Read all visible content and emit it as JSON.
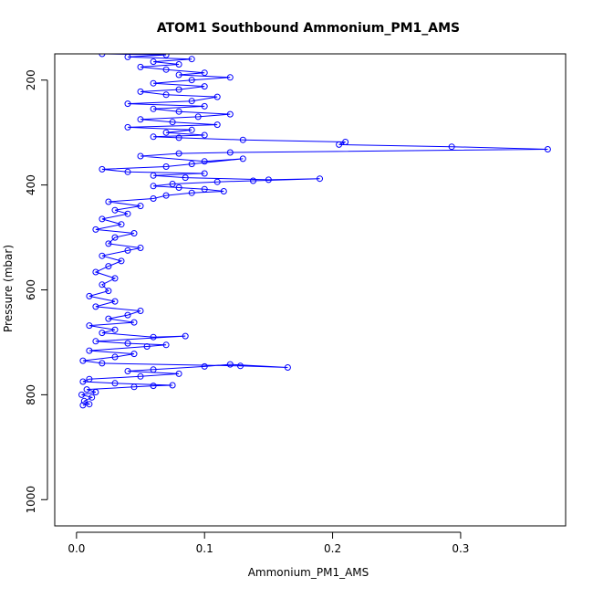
{
  "chart_data": {
    "type": "scatter",
    "title": "ATOM1 Southbound Ammonium_PM1_AMS",
    "xlabel": "Ammonium_PM1_AMS",
    "ylabel": "Pressure (mbar)",
    "xlim": [
      -0.017,
      0.382
    ],
    "ylim": [
      1050,
      150
    ],
    "y_reversed": true,
    "x_ticks": [
      {
        "value": 0.0,
        "label": "0.0"
      },
      {
        "value": 0.1,
        "label": "0.1"
      },
      {
        "value": 0.2,
        "label": "0.2"
      },
      {
        "value": 0.3,
        "label": "0.3"
      }
    ],
    "y_ticks": [
      {
        "value": 200,
        "label": "200"
      },
      {
        "value": 400,
        "label": "400"
      },
      {
        "value": 600,
        "label": "600"
      },
      {
        "value": 800,
        "label": "800"
      },
      {
        "value": 1000,
        "label": "1000"
      }
    ],
    "grid": false,
    "series": [
      {
        "color": "#0000ff",
        "marker": "open-circle",
        "connected": true,
        "points": [
          [
            0.005,
            820
          ],
          [
            0.01,
            818
          ],
          [
            0.006,
            812
          ],
          [
            0.012,
            805
          ],
          [
            0.004,
            800
          ],
          [
            0.015,
            795
          ],
          [
            0.008,
            790
          ],
          [
            0.045,
            785
          ],
          [
            0.06,
            783
          ],
          [
            0.075,
            782
          ],
          [
            0.03,
            778
          ],
          [
            0.005,
            775
          ],
          [
            0.01,
            770
          ],
          [
            0.05,
            765
          ],
          [
            0.08,
            760
          ],
          [
            0.04,
            755
          ],
          [
            0.06,
            752
          ],
          [
            0.1,
            746
          ],
          [
            0.12,
            742
          ],
          [
            0.165,
            748
          ],
          [
            0.128,
            745
          ],
          [
            0.02,
            740
          ],
          [
            0.005,
            735
          ],
          [
            0.03,
            728
          ],
          [
            0.045,
            722
          ],
          [
            0.01,
            716
          ],
          [
            0.055,
            708
          ],
          [
            0.07,
            705
          ],
          [
            0.04,
            702
          ],
          [
            0.015,
            698
          ],
          [
            0.085,
            688
          ],
          [
            0.06,
            690
          ],
          [
            0.02,
            682
          ],
          [
            0.03,
            676
          ],
          [
            0.01,
            668
          ],
          [
            0.045,
            662
          ],
          [
            0.025,
            655
          ],
          [
            0.04,
            648
          ],
          [
            0.05,
            640
          ],
          [
            0.015,
            632
          ],
          [
            0.03,
            622
          ],
          [
            0.01,
            612
          ],
          [
            0.025,
            602
          ],
          [
            0.02,
            590
          ],
          [
            0.03,
            578
          ],
          [
            0.015,
            566
          ],
          [
            0.025,
            555
          ],
          [
            0.035,
            545
          ],
          [
            0.02,
            535
          ],
          [
            0.04,
            525
          ],
          [
            0.05,
            520
          ],
          [
            0.025,
            512
          ],
          [
            0.03,
            500
          ],
          [
            0.045,
            492
          ],
          [
            0.015,
            485
          ],
          [
            0.035,
            475
          ],
          [
            0.02,
            465
          ],
          [
            0.04,
            455
          ],
          [
            0.03,
            448
          ],
          [
            0.05,
            440
          ],
          [
            0.025,
            432
          ],
          [
            0.06,
            426
          ],
          [
            0.07,
            420
          ],
          [
            0.09,
            415
          ],
          [
            0.115,
            412
          ],
          [
            0.1,
            408
          ],
          [
            0.08,
            405
          ],
          [
            0.06,
            402
          ],
          [
            0.075,
            398
          ],
          [
            0.11,
            394
          ],
          [
            0.138,
            392
          ],
          [
            0.19,
            388
          ],
          [
            0.15,
            390
          ],
          [
            0.085,
            386
          ],
          [
            0.06,
            382
          ],
          [
            0.1,
            378
          ],
          [
            0.04,
            375
          ],
          [
            0.02,
            370
          ],
          [
            0.07,
            365
          ],
          [
            0.09,
            360
          ],
          [
            0.13,
            350
          ],
          [
            0.1,
            355
          ],
          [
            0.05,
            345
          ],
          [
            0.08,
            340
          ],
          [
            0.12,
            338
          ],
          [
            0.368,
            332
          ],
          [
            0.293,
            327
          ],
          [
            0.205,
            323
          ],
          [
            0.21,
            318
          ],
          [
            0.13,
            314
          ],
          [
            0.08,
            310
          ],
          [
            0.06,
            308
          ],
          [
            0.1,
            305
          ],
          [
            0.07,
            300
          ],
          [
            0.09,
            295
          ],
          [
            0.04,
            290
          ],
          [
            0.11,
            285
          ],
          [
            0.075,
            280
          ],
          [
            0.05,
            275
          ],
          [
            0.095,
            270
          ],
          [
            0.12,
            265
          ],
          [
            0.08,
            260
          ],
          [
            0.06,
            255
          ],
          [
            0.1,
            250
          ],
          [
            0.04,
            245
          ],
          [
            0.09,
            240
          ],
          [
            0.11,
            232
          ],
          [
            0.07,
            228
          ],
          [
            0.05,
            222
          ],
          [
            0.08,
            218
          ],
          [
            0.1,
            212
          ],
          [
            0.06,
            206
          ],
          [
            0.09,
            200
          ],
          [
            0.12,
            195
          ],
          [
            0.08,
            190
          ],
          [
            0.1,
            186
          ],
          [
            0.07,
            180
          ],
          [
            0.05,
            175
          ],
          [
            0.08,
            170
          ],
          [
            0.06,
            165
          ],
          [
            0.09,
            160
          ],
          [
            0.04,
            156
          ],
          [
            0.07,
            152
          ],
          [
            0.02,
            150
          ]
        ]
      }
    ]
  }
}
